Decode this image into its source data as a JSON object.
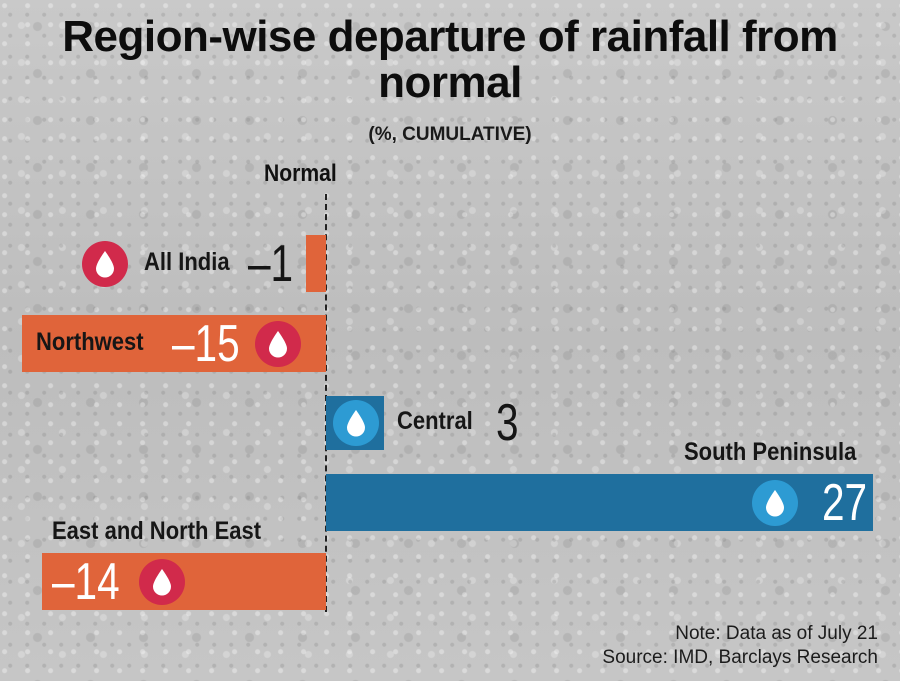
{
  "chart_data": {
    "type": "bar",
    "orientation": "horizontal",
    "title": "Region-wise departure of rainfall from normal",
    "subtitle": "(%, CUMULATIVE)",
    "axis_label": "Normal",
    "categories": [
      "All India",
      "Northwest",
      "Central",
      "South Peninsula",
      "East and North East"
    ],
    "values": [
      -1,
      -15,
      3,
      27,
      -14
    ],
    "display_values": [
      "–1",
      "–15",
      "3",
      "27",
      "–14"
    ],
    "colors": {
      "negative": "#e0643a",
      "positive": "#1f6f9e",
      "drop_negative": "#d12a4b",
      "drop_positive": "#2d9bd3"
    },
    "xlim": [
      -16,
      29
    ]
  },
  "footer": {
    "note": "Note: Data as of July 21",
    "source": "Source: IMD, Barclays Research"
  },
  "icons": {
    "drop": "water-drop-icon"
  }
}
